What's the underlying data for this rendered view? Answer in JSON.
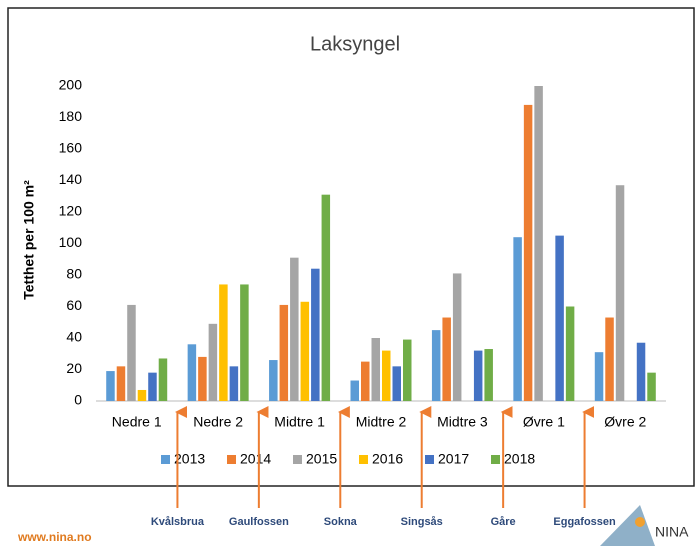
{
  "chart_data": {
    "type": "bar",
    "title": "Laksyngel",
    "y_label": "Tetthet per 100 m²",
    "categories": [
      "Nedre 1",
      "Nedre 2",
      "Midtre 1",
      "Midtre 2",
      "Midtre 3",
      "Øvre 1",
      "Øvre 2"
    ],
    "series": [
      {
        "name": "2013",
        "color": "#5b9bd5",
        "values": [
          19,
          36,
          26,
          13,
          45,
          104,
          31
        ]
      },
      {
        "name": "2014",
        "color": "#ed7d31",
        "values": [
          22,
          28,
          61,
          25,
          53,
          188,
          53
        ]
      },
      {
        "name": "2015",
        "color": "#a5a5a5",
        "values": [
          61,
          49,
          91,
          40,
          81,
          200,
          137
        ]
      },
      {
        "name": "2016",
        "color": "#ffc000",
        "values": [
          7,
          74,
          63,
          32,
          null,
          null,
          null
        ]
      },
      {
        "name": "2017",
        "color": "#4472c4",
        "values": [
          18,
          22,
          84,
          22,
          32,
          105,
          37
        ]
      },
      {
        "name": "2018",
        "color": "#70ad47",
        "values": [
          27,
          74,
          131,
          39,
          33,
          60,
          18
        ]
      }
    ],
    "ylim": [
      0,
      200
    ],
    "yticks": [
      0,
      20,
      40,
      60,
      80,
      100,
      120,
      140,
      160,
      180,
      200
    ],
    "grid": false,
    "annotations": [
      "Kvålsbrua",
      "Gaulfossen",
      "Sokna",
      "Singsås",
      "Gåre",
      "Eggafossen"
    ]
  },
  "footer": {
    "url": "www.nina.no",
    "logo": "NINA"
  }
}
